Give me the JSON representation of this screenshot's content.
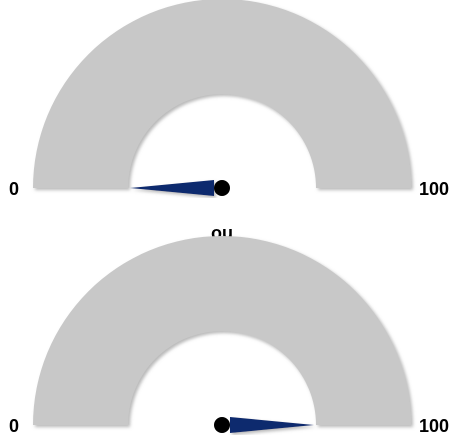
{
  "chart_data": [
    {
      "type": "gauge",
      "values": [
        0
      ],
      "ylim": [
        0,
        100
      ],
      "yticks": [
        0,
        100
      ],
      "band_color": "#c8c8c8",
      "needle_color": "#0f2a6e"
    },
    {
      "type": "gauge",
      "values": [
        100
      ],
      "ylim": [
        0,
        100
      ],
      "yticks": [
        0,
        100
      ],
      "band_color": "#c8c8c8",
      "needle_color": "#0f2a6e"
    }
  ],
  "separator": "ou"
}
